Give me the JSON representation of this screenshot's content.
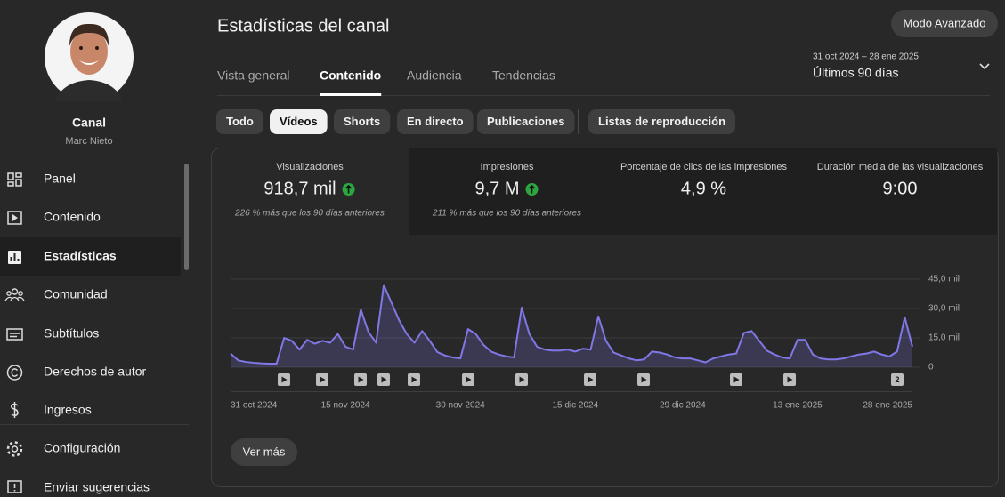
{
  "sidebar": {
    "channel_label": "Canal",
    "channel_name": "Marc Nieto",
    "nav": [
      "Panel",
      "Contenido",
      "Estadísticas",
      "Comunidad",
      "Subtítulos",
      "Derechos de autor",
      "Ingresos",
      "Configuración",
      "Enviar sugerencias"
    ]
  },
  "header": {
    "title": "Estadísticas del canal",
    "advanced_button": "Modo Avanzado",
    "date_range": "31 oct 2024 – 28 ene 2025",
    "period": "Últimos 90 días"
  },
  "tabs": [
    "Vista general",
    "Contenido",
    "Audiencia",
    "Tendencias"
  ],
  "filters": [
    "Todo",
    "Vídeos",
    "Shorts",
    "En directo",
    "Publicaciones",
    "Listas de reproducción"
  ],
  "metrics": [
    {
      "label": "Visualizaciones",
      "value": "918,7 mil",
      "note": "226 % más que los 90 días anteriores"
    },
    {
      "label": "Impresiones",
      "value": "9,7 M",
      "note": "211 % más que los 90 días anteriores"
    },
    {
      "label": "Porcentaje de clics de las impresiones",
      "value": "4,9 %"
    },
    {
      "label": "Duración media de las visualizaciones",
      "value": "9:00"
    }
  ],
  "chart_data": {
    "type": "line",
    "color": "#7f78e6",
    "categories": [
      "31 oct 2024",
      null,
      null,
      null,
      null,
      null,
      null,
      null,
      null,
      null,
      null,
      null,
      null,
      null,
      null,
      "15 nov 2024",
      null,
      null,
      null,
      null,
      null,
      null,
      null,
      null,
      null,
      null,
      null,
      null,
      null,
      null,
      "30 nov 2024",
      null,
      null,
      null,
      null,
      null,
      null,
      null,
      null,
      null,
      null,
      null,
      null,
      null,
      null,
      "15 dic 2024",
      null,
      null,
      null,
      null,
      null,
      null,
      null,
      null,
      null,
      null,
      null,
      null,
      null,
      "29 dic 2024",
      null,
      null,
      null,
      null,
      null,
      null,
      null,
      null,
      null,
      null,
      null,
      null,
      null,
      null,
      "13 ene 2025",
      null,
      null,
      null,
      null,
      null,
      null,
      null,
      null,
      null,
      null,
      null,
      null,
      null,
      null,
      "28 ene 2025"
    ],
    "values": [
      7000,
      3500,
      2700,
      2300,
      2000,
      1800,
      1800,
      15000,
      13500,
      9000,
      14000,
      12000,
      13500,
      12500,
      17000,
      10500,
      9000,
      29500,
      18000,
      12500,
      42000,
      33000,
      24000,
      17000,
      12500,
      18500,
      13500,
      7700,
      6000,
      5000,
      4500,
      19500,
      17000,
      11500,
      8000,
      6500,
      5500,
      5000,
      30500,
      17000,
      10500,
      9000,
      8500,
      8500,
      9000,
      8000,
      9500,
      9000,
      26000,
      13500,
      7500,
      6000,
      4500,
      3500,
      4000,
      8000,
      7500,
      6500,
      5000,
      4500,
      4500,
      3500,
      2500,
      4500,
      5500,
      6500,
      7000,
      17500,
      18500,
      13500,
      8500,
      6500,
      5000,
      4500,
      14000,
      14000,
      6500,
      4500,
      4000,
      4000,
      4500,
      5500,
      6500,
      7000,
      8000,
      6500,
      5500,
      8000,
      25500,
      10500
    ],
    "ylim": [
      0,
      45000
    ],
    "yticks": [
      0,
      {
        "value": 15000,
        "label": "15,0 mil"
      },
      {
        "value": 30000,
        "label": "30,0 mil"
      },
      {
        "value": 45000,
        "label": "45,0 mil"
      }
    ],
    "grid": true
  },
  "upload_badge": "2",
  "more_button": "Ver más"
}
